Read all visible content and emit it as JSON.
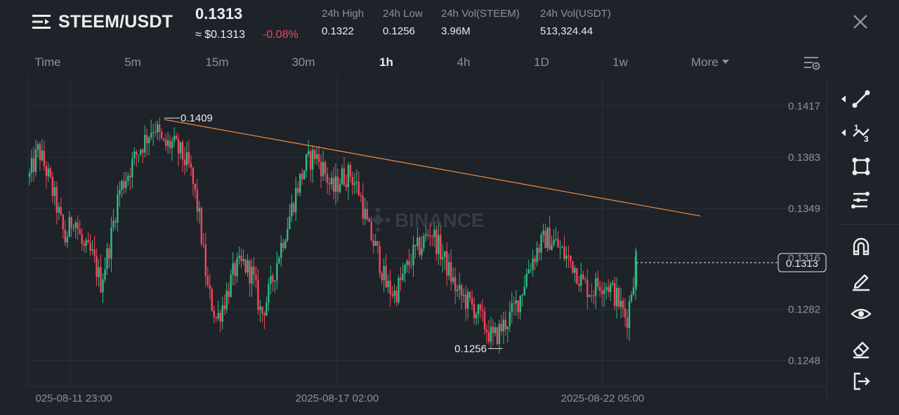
{
  "header": {
    "pair": "STEEM/USDT",
    "last_price": "0.1313",
    "usd_price": "≈ $0.1313",
    "change": "-0.08%",
    "stats": [
      {
        "label": "24h High",
        "value": "0.1322"
      },
      {
        "label": "24h Low",
        "value": "0.1256"
      },
      {
        "label": "24h Vol(STEEM)",
        "value": "3.96M"
      },
      {
        "label": "24h Vol(USDT)",
        "value": "513,324.44"
      }
    ]
  },
  "tabs": [
    {
      "label": "Time",
      "active": false
    },
    {
      "label": "5m",
      "active": false
    },
    {
      "label": "15m",
      "active": false
    },
    {
      "label": "30m",
      "active": false
    },
    {
      "label": "1h",
      "active": true
    },
    {
      "label": "4h",
      "active": false
    },
    {
      "label": "1D",
      "active": false
    },
    {
      "label": "1w",
      "active": false
    }
  ],
  "more_label": "More",
  "watermark": "BINANCE",
  "chart_data": {
    "type": "candlestick",
    "pair": "STEEM/USDT",
    "interval": "1h",
    "y_ticks": [
      "0.1417",
      "0.1383",
      "0.1349",
      "0.1316",
      "0.1282",
      "0.1248"
    ],
    "ylim": [
      0.1231,
      0.1437
    ],
    "x_ticks": [
      "025-08-11 23:00",
      "2025-08-17 02:00",
      "2025-08-22 05:00"
    ],
    "annotations": {
      "high": "0.1409",
      "low": "0.1256"
    },
    "current_price": "0.1313",
    "trendline": {
      "from": {
        "x": "2025-08-13",
        "y": 0.1408
      },
      "to": {
        "x": "2025-08-24",
        "y": 0.1344
      }
    },
    "close_path": [
      0.137,
      0.1388,
      0.1372,
      0.1352,
      0.1328,
      0.1345,
      0.1322,
      0.1318,
      0.13,
      0.1325,
      0.136,
      0.1372,
      0.1385,
      0.1395,
      0.1405,
      0.139,
      0.1392,
      0.1385,
      0.1375,
      0.1345,
      0.1295,
      0.1275,
      0.129,
      0.1308,
      0.1312,
      0.1305,
      0.1278,
      0.1295,
      0.132,
      0.134,
      0.1362,
      0.1378,
      0.1385,
      0.1375,
      0.136,
      0.137,
      0.1372,
      0.136,
      0.1335,
      0.132,
      0.1298,
      0.1292,
      0.1305,
      0.1318,
      0.1325,
      0.1335,
      0.1322,
      0.1308,
      0.1293,
      0.1288,
      0.1282,
      0.1272,
      0.1262,
      0.127,
      0.1278,
      0.129,
      0.131,
      0.1322,
      0.133,
      0.1326,
      0.1318,
      0.1312,
      0.13,
      0.1294,
      0.13,
      0.1298,
      0.1288,
      0.1275,
      0.1313
    ]
  },
  "tools": [
    {
      "name": "trend-line-tool-icon",
      "expandable": true
    },
    {
      "name": "fibonacci-tool-icon",
      "expandable": true
    },
    {
      "name": "rectangle-tool-icon",
      "expandable": false
    },
    {
      "name": "horizontal-lines-tool-icon",
      "expandable": false
    },
    {
      "name": "magnet-icon",
      "expandable": false
    },
    {
      "name": "pencil-icon",
      "expandable": false
    },
    {
      "name": "eye-icon",
      "expandable": false
    },
    {
      "name": "eraser-icon",
      "expandable": false
    },
    {
      "name": "exit-icon",
      "expandable": false
    }
  ],
  "colors": {
    "up": "#2ebd85",
    "down": "#f6465d",
    "trend": "#e8833a",
    "bg": "#1e2229",
    "grid": "#2b3039"
  }
}
